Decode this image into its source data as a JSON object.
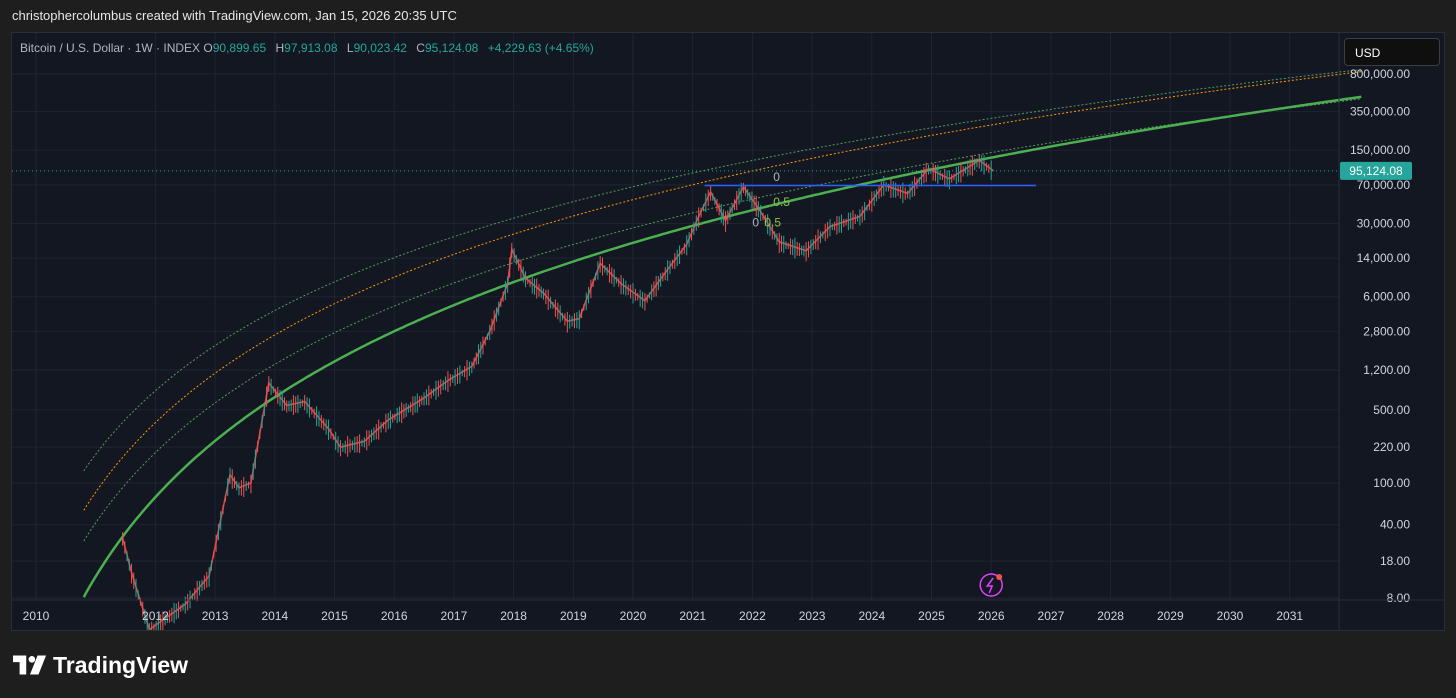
{
  "header": {
    "caption": "christophercolumbus created with TradingView.com, Jan 15, 2026 20:35 UTC"
  },
  "legend": {
    "symbol": "Bitcoin / U.S. Dollar · 1W · INDEX",
    "open_key": "O",
    "open": "90,899.65",
    "high_key": "H",
    "high": "97,913.08",
    "low_key": "L",
    "low": "90,023.42",
    "close_key": "C",
    "close": "95,124.08",
    "change": "+4,229.63 (+4.65%)"
  },
  "currency_button": "USD",
  "price_tag": "95,124.08",
  "fib_labels": {
    "top": "0",
    "mid": "0.5",
    "low_a": "0",
    "low_b": "0.5"
  },
  "footer": {
    "brand": "TradingView"
  },
  "colors": {
    "background": "#131722",
    "up": "#26a69a",
    "down": "#ef5350",
    "support_curve": "#4caf50",
    "orange_band": "#ff9800",
    "green_band": "#66bb6a",
    "horizontal_line": "#2962ff",
    "price_tag": "#26a69a"
  },
  "chart_data": {
    "type": "line",
    "y_scale": "log",
    "x_axis_ticks": [
      "2010",
      "2012",
      "2013",
      "2014",
      "2015",
      "2016",
      "2017",
      "2018",
      "2019",
      "2020",
      "2021",
      "2022",
      "2023",
      "2024",
      "2025",
      "2026",
      "2027",
      "2028",
      "2029",
      "2030",
      "2031"
    ],
    "y_axis_ticks": [
      "800,000.00",
      "350,000.00",
      "150,000.00",
      "70,000.00",
      "30,000.00",
      "14,000.00",
      "6,000.00",
      "2,800.00",
      "1,200.00",
      "500.00",
      "220.00",
      "100.00",
      "40.00",
      "18.00",
      "8.00"
    ],
    "ylim": [
      8,
      800000
    ],
    "xlim": [
      2010,
      2032
    ],
    "last_price": 95124.08,
    "horizontal_level": 69000,
    "series": [
      {
        "values": [
          [
            2011.45,
            30
          ],
          [
            2011.6,
            14
          ],
          [
            2011.9,
            4
          ],
          [
            2012.5,
            7
          ],
          [
            2012.9,
            13
          ],
          [
            2013.25,
            120
          ],
          [
            2013.4,
            90
          ],
          [
            2013.6,
            100
          ],
          [
            2013.9,
            900
          ],
          [
            2014.2,
            550
          ],
          [
            2014.5,
            600
          ],
          [
            2014.9,
            330
          ],
          [
            2015.1,
            220
          ],
          [
            2015.5,
            250
          ],
          [
            2015.9,
            400
          ],
          [
            2016.5,
            650
          ],
          [
            2016.9,
            950
          ],
          [
            2017.3,
            1300
          ],
          [
            2017.6,
            2800
          ],
          [
            2017.9,
            8000
          ],
          [
            2017.97,
            17000
          ],
          [
            2018.2,
            9000
          ],
          [
            2018.5,
            6500
          ],
          [
            2018.9,
            3500
          ],
          [
            2019.1,
            3700
          ],
          [
            2019.45,
            12500
          ],
          [
            2019.8,
            8000
          ],
          [
            2020.2,
            5500
          ],
          [
            2020.5,
            9500
          ],
          [
            2020.9,
            19000
          ],
          [
            2021.1,
            35000
          ],
          [
            2021.3,
            60000
          ],
          [
            2021.55,
            32000
          ],
          [
            2021.85,
            67000
          ],
          [
            2022.1,
            42000
          ],
          [
            2022.45,
            20000
          ],
          [
            2022.9,
            16500
          ],
          [
            2023.3,
            28000
          ],
          [
            2023.8,
            35000
          ],
          [
            2024.2,
            70000
          ],
          [
            2024.6,
            58000
          ],
          [
            2024.95,
            100000
          ],
          [
            2025.3,
            80000
          ],
          [
            2025.8,
            120000
          ],
          [
            2026.04,
            95124
          ]
        ]
      }
    ]
  }
}
